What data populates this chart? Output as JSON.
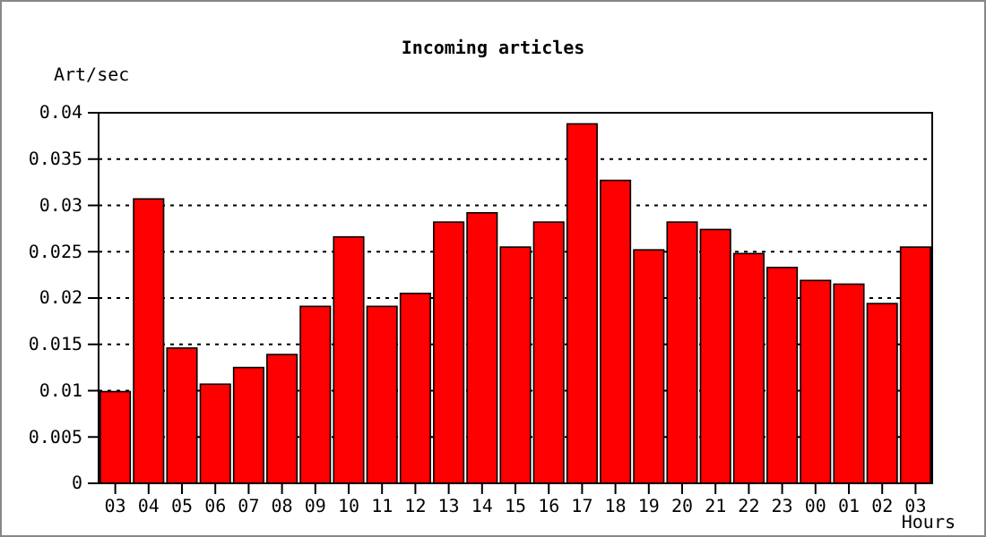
{
  "chart_data": {
    "type": "bar",
    "title": "Incoming articles",
    "ylabel": "Art/sec",
    "xlabel": "Hours",
    "categories": [
      "03",
      "04",
      "05",
      "06",
      "07",
      "08",
      "09",
      "10",
      "11",
      "12",
      "13",
      "14",
      "15",
      "16",
      "17",
      "18",
      "19",
      "20",
      "21",
      "22",
      "23",
      "00",
      "01",
      "02",
      "03"
    ],
    "values": [
      0.0099,
      0.0307,
      0.0146,
      0.0107,
      0.0125,
      0.0139,
      0.0191,
      0.0266,
      0.0191,
      0.0205,
      0.0282,
      0.0292,
      0.0255,
      0.0282,
      0.0388,
      0.0327,
      0.0252,
      0.0282,
      0.0274,
      0.0248,
      0.0233,
      0.0219,
      0.0215,
      0.0194,
      0.0255
    ],
    "color": "#ff0000",
    "ylim": [
      0,
      0.04
    ],
    "yticks": [
      0,
      0.005,
      0.01,
      0.015,
      0.02,
      0.025,
      0.03,
      0.035,
      0.04
    ],
    "grid": "y",
    "line_style": "dotted"
  }
}
